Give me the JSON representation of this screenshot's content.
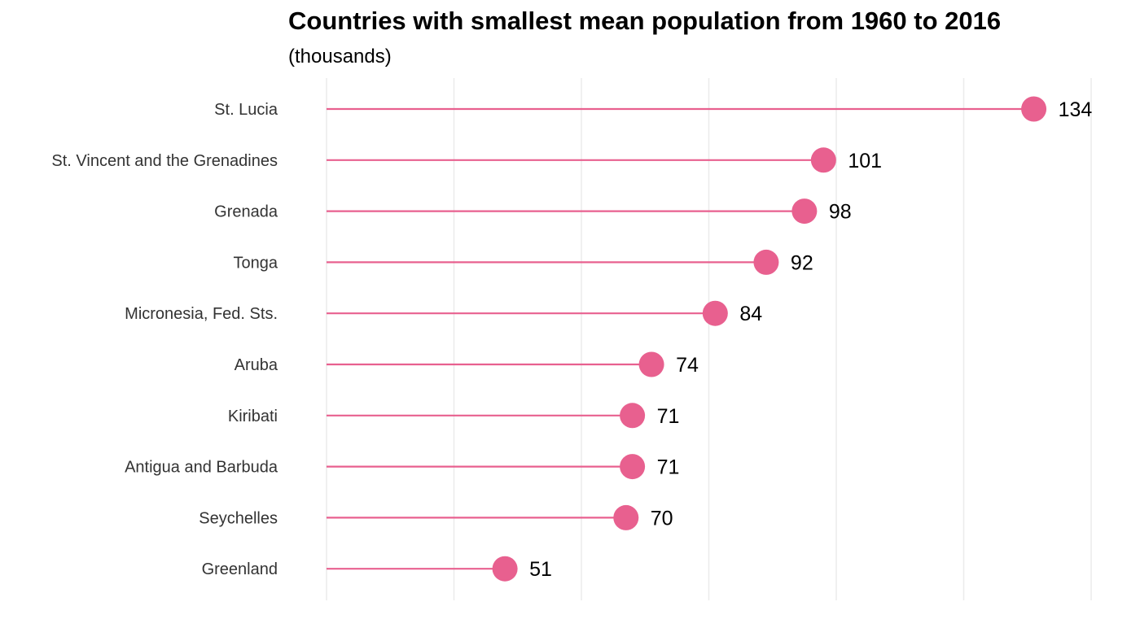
{
  "chart_data": {
    "type": "lollipop",
    "title": "Countries with smallest mean population from 1960 to 2016",
    "subtitle": "(thousands)",
    "xlabel": "",
    "ylabel": "",
    "xlim": [
      23,
      143
    ],
    "grid": "vertical",
    "color": "#e8608f",
    "categories": [
      "St. Lucia",
      "St. Vincent and the Grenadines",
      "Grenada",
      "Tonga",
      "Micronesia, Fed. Sts.",
      "Aruba",
      "Kiribati",
      "Antigua and Barbuda",
      "Seychelles",
      "Greenland"
    ],
    "values": [
      134,
      101,
      98,
      92,
      84,
      74,
      71,
      71,
      70,
      51
    ],
    "value_labels": [
      "134",
      "101",
      "98",
      "92",
      "84",
      "74",
      "71",
      "71",
      "70",
      "51"
    ]
  }
}
